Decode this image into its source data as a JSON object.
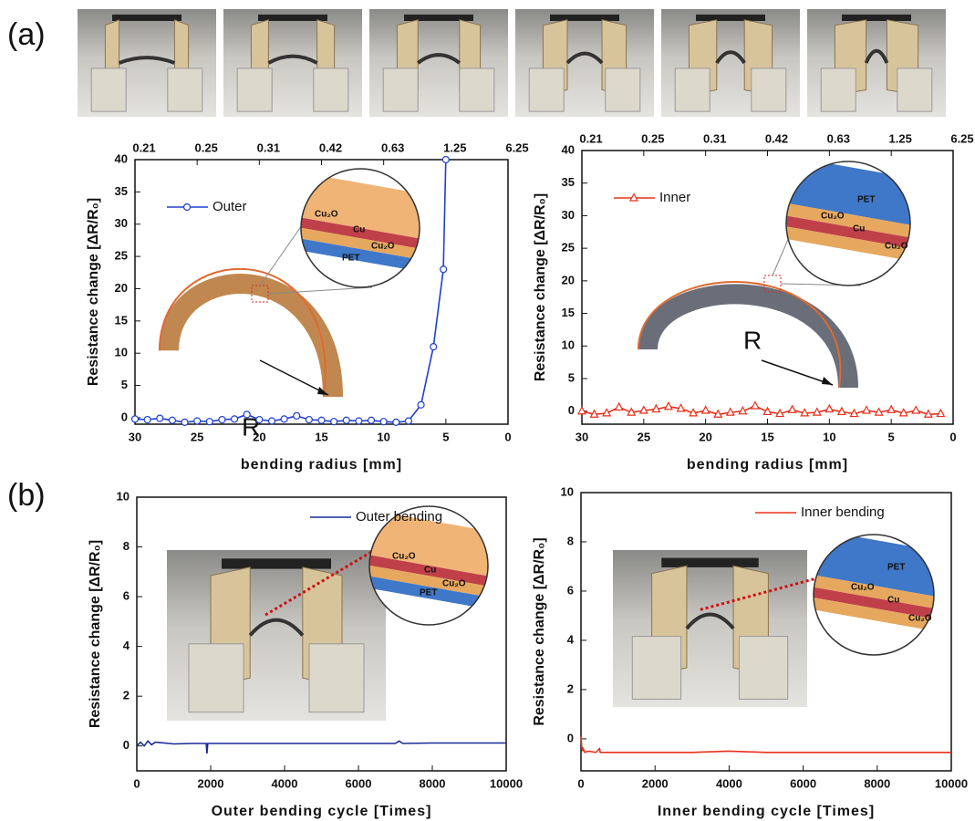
{
  "panel_labels": [
    "(a)",
    "(b)"
  ],
  "chart_data": [
    {
      "type": "line",
      "x_label": "bending radius [mm]",
      "y_label": "Resistance change [ΔR/R₀]",
      "xlim": [
        30,
        0
      ],
      "xticks": [
        30,
        25,
        20,
        15,
        10,
        5,
        0
      ],
      "top_axis_labels": [
        "0.21",
        "0.25",
        "0.31",
        "0.42",
        "0.63",
        "1.25",
        "6.25"
      ],
      "ylim": [
        -1,
        40
      ],
      "yticks": [
        0,
        5,
        10,
        15,
        20,
        25,
        30,
        35,
        40
      ],
      "legend": "upper left",
      "annotations": [
        "Cu₂O",
        "Cu",
        "Cu₂O",
        "PET",
        "R"
      ],
      "series": [
        {
          "name": "Outer",
          "color": "#1f3fd0",
          "marker": "circle",
          "x": [
            30,
            29,
            28,
            27,
            26,
            25,
            24,
            23,
            22,
            21,
            20,
            19,
            18,
            17,
            16,
            15,
            14,
            13,
            12,
            11,
            10,
            9,
            8,
            7,
            6,
            5.2,
            5
          ],
          "values": [
            -0.2,
            -0.3,
            -0.1,
            -0.4,
            -0.7,
            -0.5,
            -0.6,
            -0.3,
            -0.2,
            0.5,
            -0.3,
            -0.5,
            -0.2,
            0.3,
            -0.3,
            -0.4,
            -0.6,
            -0.4,
            -0.5,
            -0.4,
            -0.6,
            -0.7,
            -0.5,
            2,
            11,
            23,
            40
          ]
        }
      ]
    },
    {
      "type": "line",
      "x_label": "bending radius [mm]",
      "y_label": "Resistance change [ΔR/R₀]",
      "xlim": [
        30,
        0
      ],
      "xticks": [
        30,
        25,
        20,
        15,
        10,
        5,
        0
      ],
      "top_axis_labels": [
        "0.21",
        "0.25",
        "0.31",
        "0.42",
        "0.63",
        "1.25",
        "6.25"
      ],
      "ylim": [
        -2,
        40
      ],
      "yticks": [
        0,
        5,
        10,
        15,
        20,
        25,
        30,
        35,
        40
      ],
      "legend": "upper left",
      "annotations": [
        "PET",
        "Cu₂O",
        "Cu",
        "Cu₂O",
        "R"
      ],
      "series": [
        {
          "name": "Inner",
          "color": "#e8301c",
          "marker": "triangle",
          "x": [
            30,
            29,
            28,
            27,
            26,
            25,
            24,
            23,
            22,
            21,
            20,
            19,
            18,
            17,
            16,
            15,
            14,
            13,
            12,
            11,
            10,
            9,
            8,
            7,
            6,
            5,
            4,
            3,
            2,
            1
          ],
          "values": [
            0,
            -0.5,
            -0.3,
            0.6,
            -0.2,
            0.1,
            0.3,
            0.7,
            0.4,
            -0.3,
            0.1,
            -0.5,
            -0.2,
            0,
            0.8,
            -0.1,
            -0.4,
            0.2,
            -0.3,
            -0.2,
            0.3,
            -0.1,
            -0.4,
            0.1,
            -0.2,
            0.2,
            -0.3,
            0.1,
            -0.5,
            -0.4
          ]
        }
      ]
    },
    {
      "type": "line",
      "x_label": "Outer bending cycle [Times]",
      "y_label": "Resistance change [ΔR/R₀]",
      "xlim": [
        0,
        10000
      ],
      "xticks": [
        0,
        2000,
        4000,
        6000,
        8000,
        10000
      ],
      "ylim": [
        -1,
        10
      ],
      "yticks": [
        0,
        2,
        4,
        6,
        8,
        10
      ],
      "legend": "upper right",
      "annotations": [
        "Cu₂O",
        "Cu",
        "Cu₂O",
        "PET"
      ],
      "series": [
        {
          "name": "Outer bending",
          "color": "#1a2a9a",
          "x": [
            0,
            100,
            200,
            300,
            400,
            500,
            1000,
            1500,
            1880,
            1900,
            1920,
            2000,
            3000,
            4000,
            5000,
            6000,
            7000,
            7100,
            7200,
            8000,
            9000,
            10000
          ],
          "values": [
            0,
            0.15,
            0,
            0.2,
            0.05,
            0.15,
            0.08,
            0.1,
            0.1,
            -0.3,
            0.1,
            0.1,
            0.1,
            0.1,
            0.1,
            0.1,
            0.1,
            0.2,
            0.1,
            0.12,
            0.12,
            0.12
          ]
        }
      ]
    },
    {
      "type": "line",
      "x_label": "Inner bending cycle [Times]",
      "y_label": "Resistance change [ΔR/R₀]",
      "xlim": [
        0,
        10000
      ],
      "xticks": [
        0,
        2000,
        4000,
        6000,
        8000,
        10000
      ],
      "ylim": [
        -1.3,
        10
      ],
      "yticks": [
        0,
        2,
        4,
        6,
        8,
        10
      ],
      "legend": "upper right",
      "annotations": [
        "PET",
        "Cu₂O",
        "Cu",
        "Cu₂O"
      ],
      "series": [
        {
          "name": "Inner bending",
          "color": "#e8301c",
          "x": [
            0,
            20,
            40,
            60,
            100,
            200,
            400,
            500,
            520,
            600,
            1000,
            2000,
            3000,
            4000,
            5000,
            6000,
            8000,
            10000
          ],
          "values": [
            0.1,
            -0.3,
            -0.5,
            -0.4,
            -0.55,
            -0.5,
            -0.55,
            -0.4,
            -0.55,
            -0.55,
            -0.55,
            -0.55,
            -0.55,
            -0.5,
            -0.55,
            -0.55,
            -0.55,
            -0.55
          ]
        }
      ]
    }
  ]
}
